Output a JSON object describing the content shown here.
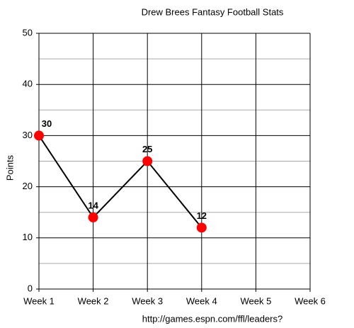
{
  "chart_data": {
    "type": "line",
    "title": "Drew Brees Fantasy Football Stats",
    "y_label": "Points",
    "source": "http://games.espn.com/ffl/leaders?",
    "categories": [
      "Week 1",
      "Week 2",
      "Week 3",
      "Week 4",
      "Week 5",
      "Week 6"
    ],
    "values": [
      30,
      14,
      25,
      12,
      null,
      null
    ],
    "color": "#000000",
    "marker_color": "#ff0000",
    "ylim": [
      0,
      50
    ],
    "yticks": [
      0,
      10,
      20,
      30,
      40,
      50
    ],
    "minor_yticks": [
      5,
      15,
      25,
      35,
      45
    ],
    "grid": true
  }
}
